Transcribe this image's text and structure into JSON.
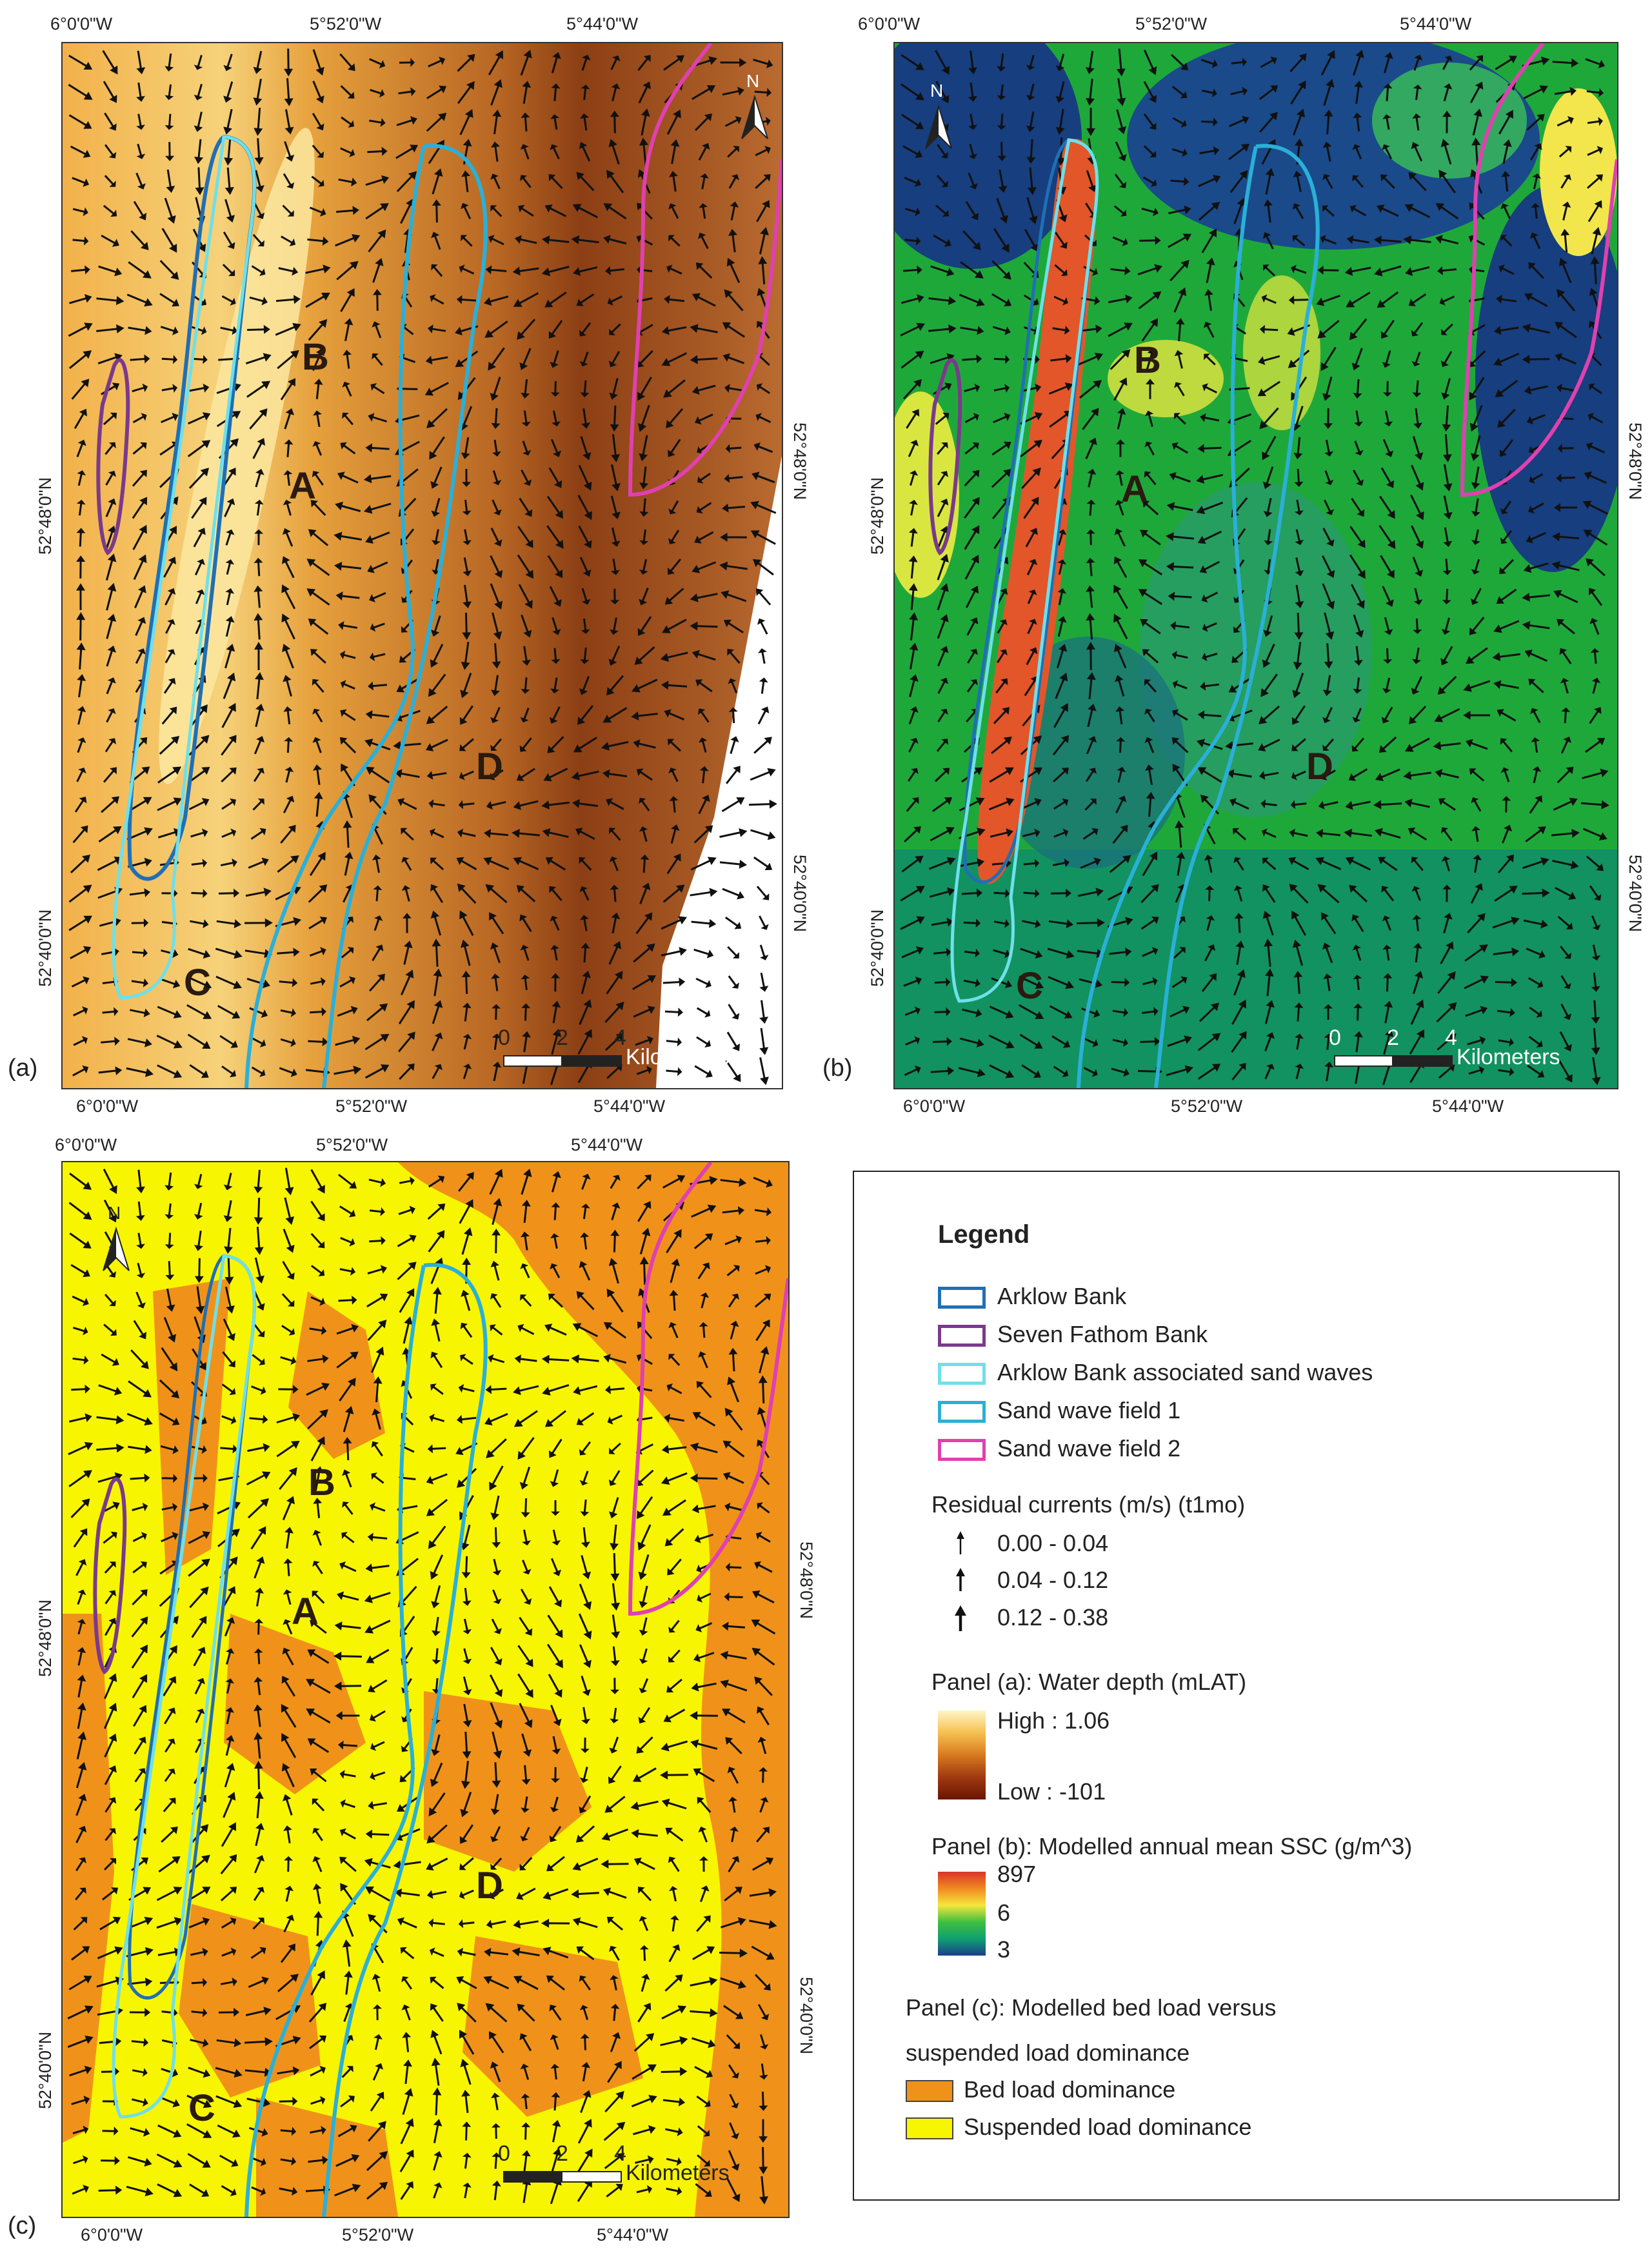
{
  "longitude_labels": [
    "6°0'0\"W",
    "5°52'0\"W",
    "5°44'0\"W"
  ],
  "latitude_labels": [
    "52°48'0\"N",
    "52°40'0\"N"
  ],
  "panel_letters": [
    "(a)",
    "(b)",
    "(c)"
  ],
  "map_letters": [
    "A",
    "B",
    "C",
    "D"
  ],
  "north_label": "N",
  "scale": {
    "ticks": [
      "0",
      "2",
      "4"
    ],
    "unit": "Kilometers"
  },
  "legend": {
    "title": "Legend",
    "features": [
      {
        "label": "Arklow Bank",
        "color": "#1f6fb5"
      },
      {
        "label": "Seven Fathom Bank",
        "color": "#7a3a8c"
      },
      {
        "label": "Arklow Bank associated sand waves",
        "color": "#6ee0ea"
      },
      {
        "label": "Sand wave field 1",
        "color": "#2ab0d8"
      },
      {
        "label": "Sand wave field 2",
        "color": "#e040b0"
      }
    ],
    "residual_title": "Residual currents (m/s) (t1mo)",
    "residual_classes": [
      "0.00 - 0.04",
      "0.04 - 0.12",
      "0.12 - 0.38"
    ],
    "panel_a_title": "Panel (a): Water depth (mLAT)",
    "panel_a_high": "High : 1.06",
    "panel_a_low": "Low : -101",
    "panel_b_title": "Panel (b): Modelled annual mean SSC (g/m^3)",
    "panel_b_ticks": [
      "897",
      "6",
      "3"
    ],
    "panel_c_title_1": "Panel (c): Modelled bed load versus",
    "panel_c_title_2": "suspended load dominance",
    "panel_c_classes": [
      {
        "label": "Bed load dominance",
        "color": "#f0921a"
      },
      {
        "label": "Suspended load dominance",
        "color": "#f8f500"
      }
    ]
  }
}
